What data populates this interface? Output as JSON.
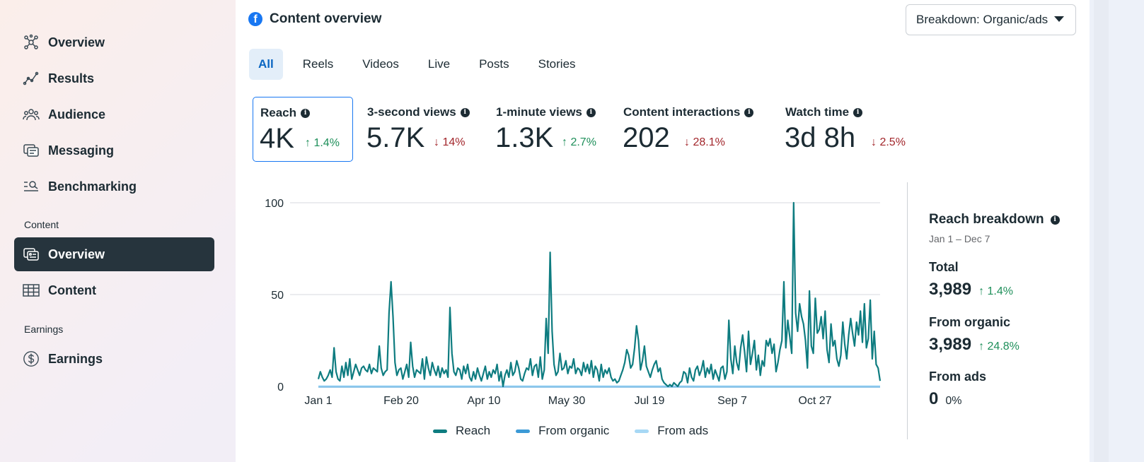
{
  "sidebar": {
    "items": [
      {
        "label": "Overview",
        "icon": "network-icon"
      },
      {
        "label": "Results",
        "icon": "trend-icon"
      },
      {
        "label": "Audience",
        "icon": "people-icon"
      },
      {
        "label": "Messaging",
        "icon": "chat-icon"
      },
      {
        "label": "Benchmarking",
        "icon": "benchmark-icon"
      }
    ],
    "content_section": "Content",
    "content_items": [
      {
        "label": "Overview",
        "icon": "content-overview-icon"
      },
      {
        "label": "Content",
        "icon": "table-icon"
      }
    ],
    "earnings_section": "Earnings",
    "earnings_items": [
      {
        "label": "Earnings",
        "icon": "dollar-icon"
      }
    ]
  },
  "header": {
    "title": "Content overview",
    "breakdown_label": "Breakdown: Organic/ads"
  },
  "tabs": [
    "All",
    "Reels",
    "Videos",
    "Live",
    "Posts",
    "Stories"
  ],
  "metrics": [
    {
      "label": "Reach",
      "value": "4K",
      "change": "1.4%",
      "direction": "up"
    },
    {
      "label": "3-second views",
      "value": "5.7K",
      "change": "14%",
      "direction": "down"
    },
    {
      "label": "1-minute views",
      "value": "1.3K",
      "change": "2.7%",
      "direction": "up"
    },
    {
      "label": "Content interactions",
      "value": "202",
      "change": "28.1%",
      "direction": "down"
    },
    {
      "label": "Watch time",
      "value": "3d 8h",
      "change": "2.5%",
      "direction": "down"
    }
  ],
  "reach_breakdown": {
    "title": "Reach breakdown",
    "date_range": "Jan 1 – Dec 7",
    "total_label": "Total",
    "total_value": "3,989",
    "total_change": "1.4%",
    "organic_label": "From organic",
    "organic_value": "3,989",
    "organic_change": "24.8%",
    "ads_label": "From ads",
    "ads_value": "0",
    "ads_change": "0%"
  },
  "colors": {
    "reach": "#0e7c80",
    "organic": "#3c9ad6",
    "ads": "#a7d8f5",
    "up": "#1e8f5a",
    "down": "#a2262b"
  },
  "chart_data": {
    "type": "line",
    "x_tick_labels": [
      "Jan 1",
      "Feb 20",
      "Apr 10",
      "May 30",
      "Jul 19",
      "Sep 7",
      "Oct 27"
    ],
    "y_ticks": [
      0,
      50,
      100
    ],
    "ylim": [
      0,
      100
    ],
    "grid": true,
    "legend_position": "bottom",
    "series": [
      {
        "name": "Reach",
        "values": [
          4,
          8,
          5,
          3,
          4,
          6,
          9,
          5,
          21,
          8,
          4,
          3,
          11,
          5,
          13,
          6,
          15,
          4,
          8,
          12,
          9,
          6,
          10,
          11,
          9,
          8,
          12,
          7,
          10,
          9,
          8,
          22,
          10,
          6,
          8,
          9,
          40,
          57,
          38,
          13,
          6,
          9,
          10,
          4,
          8,
          12,
          5,
          24,
          11,
          5,
          9,
          8,
          7,
          15,
          4,
          16,
          10,
          6,
          13,
          9,
          6,
          11,
          5,
          10,
          7,
          9,
          5,
          43,
          18,
          8,
          6,
          10,
          9,
          4,
          11,
          7,
          12,
          5,
          3,
          8,
          4,
          10,
          6,
          3,
          7,
          11,
          4,
          8,
          5,
          9,
          7,
          12,
          3,
          8,
          0,
          6,
          9,
          5,
          13,
          6,
          8,
          14,
          10,
          4,
          3,
          7,
          10,
          9,
          15,
          6,
          11,
          12,
          5,
          16,
          4,
          9,
          37,
          18,
          73,
          30,
          12,
          6,
          8,
          18,
          9,
          10,
          14,
          7,
          11,
          10,
          15,
          7,
          10,
          9,
          6,
          13,
          8,
          12,
          7,
          14,
          5,
          11,
          9,
          3,
          12,
          5,
          9,
          7,
          10,
          5,
          3,
          4,
          2,
          3,
          6,
          9,
          13,
          20,
          17,
          10,
          12,
          21,
          33,
          25,
          9,
          14,
          22,
          11,
          8,
          5,
          9,
          12,
          14,
          8,
          10,
          4,
          2,
          1,
          0,
          1,
          0,
          2,
          1,
          0,
          2,
          3,
          8,
          7,
          2,
          10,
          5,
          3,
          9,
          11,
          6,
          9,
          14,
          5,
          10,
          7,
          12,
          4,
          9,
          6,
          3,
          10,
          11,
          4,
          8,
          36,
          15,
          7,
          22,
          13,
          9,
          21,
          28,
          19,
          8,
          30,
          12,
          18,
          25,
          9,
          17,
          6,
          14,
          11,
          25,
          22,
          26,
          18,
          23,
          8,
          13,
          20,
          25,
          57,
          21,
          36,
          27,
          18,
          100,
          40,
          30,
          45,
          38,
          34,
          25,
          10,
          52,
          22,
          18,
          48,
          29,
          31,
          38,
          26,
          41,
          20,
          13,
          34,
          22,
          25,
          15,
          11,
          17,
          35,
          23,
          15,
          28,
          37,
          29,
          22,
          35,
          28,
          41,
          24,
          45,
          21,
          26,
          47,
          15,
          30,
          12,
          10,
          3
        ]
      },
      {
        "name": "From organic",
        "values": []
      },
      {
        "name": "From ads",
        "values": []
      }
    ]
  }
}
